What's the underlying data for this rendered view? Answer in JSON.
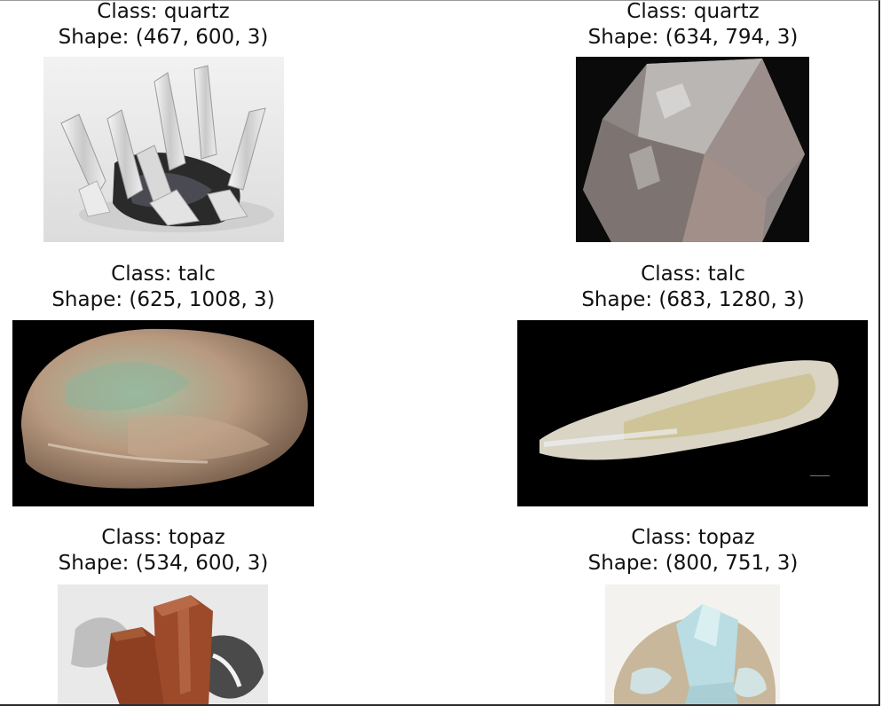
{
  "figure": {
    "panels": [
      {
        "class_line": "Class: quartz",
        "shape_line": "Shape: (467, 600, 3)",
        "image_subject": "clear quartz crystal cluster on dark matrix"
      },
      {
        "class_line": "Class: quartz",
        "shape_line": "Shape: (634, 794, 3)",
        "image_subject": "smoky quartz crystal on black background"
      },
      {
        "class_line": "Class: talc",
        "shape_line": "Shape: (625, 1008, 3)",
        "image_subject": "greenish talc rock on black background"
      },
      {
        "class_line": "Class: talc",
        "shape_line": "Shape: (683, 1280, 3)",
        "image_subject": "elongated white-yellow talc specimen on black background"
      },
      {
        "class_line": "Class: topaz",
        "shape_line": "Shape: (534, 600, 3)",
        "image_subject": "brown topaz crystals on white matrix"
      },
      {
        "class_line": "Class: topaz",
        "shape_line": "Shape: (800, 751, 3)",
        "image_subject": "pale blue topaz crystal on matrix"
      }
    ]
  }
}
